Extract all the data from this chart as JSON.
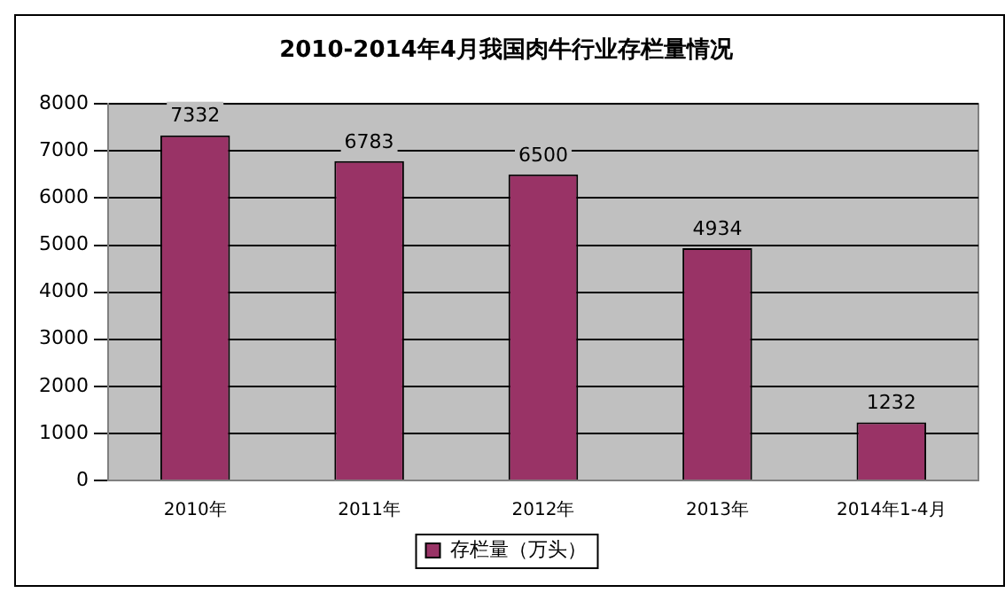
{
  "chart_data": {
    "type": "bar",
    "title": "2010-2014年4月我国肉牛行业存栏量情况",
    "categories": [
      "2010年",
      "2011年",
      "2012年",
      "2013年",
      "2014年1-4月"
    ],
    "series": [
      {
        "name": "存栏量（万头）",
        "color": "#993366",
        "values": [
          7332,
          6783,
          6500,
          4934,
          1232
        ]
      }
    ],
    "ylim": [
      0,
      8000
    ],
    "yticks": [
      0,
      1000,
      2000,
      3000,
      4000,
      5000,
      6000,
      7000,
      8000
    ],
    "grid": "y",
    "legend": "bottom",
    "data_labels": true
  }
}
